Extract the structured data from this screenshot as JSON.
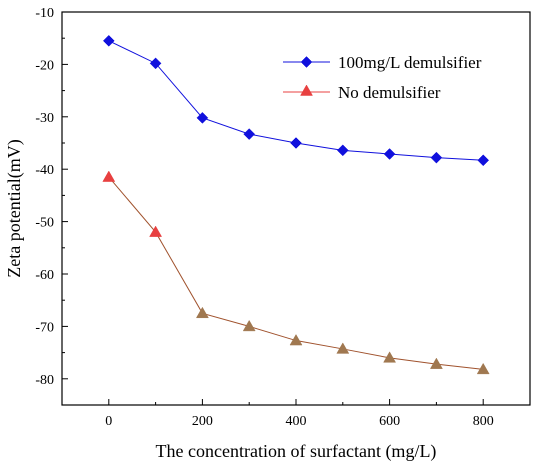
{
  "chart_data": {
    "type": "line",
    "xlabel": "The concentration of surfactant (mg/L)",
    "ylabel": "Zeta potential(mV)",
    "xlim": [
      -100,
      900
    ],
    "ylim": [
      -85,
      -10
    ],
    "xticks": [
      0,
      200,
      400,
      600,
      800
    ],
    "yticks": [
      -10,
      -20,
      -30,
      -40,
      -50,
      -60,
      -70,
      -80
    ],
    "grid": false,
    "legend_position": "top-right",
    "x": [
      0,
      100,
      200,
      300,
      400,
      500,
      600,
      700,
      800
    ],
    "series": [
      {
        "name": "100mg/L demulsifier",
        "marker": "diamond",
        "color": "#1010dd",
        "values": [
          -15.5,
          -19.8,
          -30.2,
          -33.3,
          -35.0,
          -36.4,
          -37.1,
          -37.8,
          -38.3
        ]
      },
      {
        "name": "No demulsifier",
        "marker": "triangle",
        "color": "#e84040",
        "line_color": "#a0522d",
        "marker_fill": "#a07850",
        "first_marker_fill": "#e84040",
        "values": [
          -41.5,
          -52.0,
          -67.5,
          -70.0,
          -72.7,
          -74.3,
          -76.0,
          -77.2,
          -78.2
        ]
      }
    ]
  }
}
